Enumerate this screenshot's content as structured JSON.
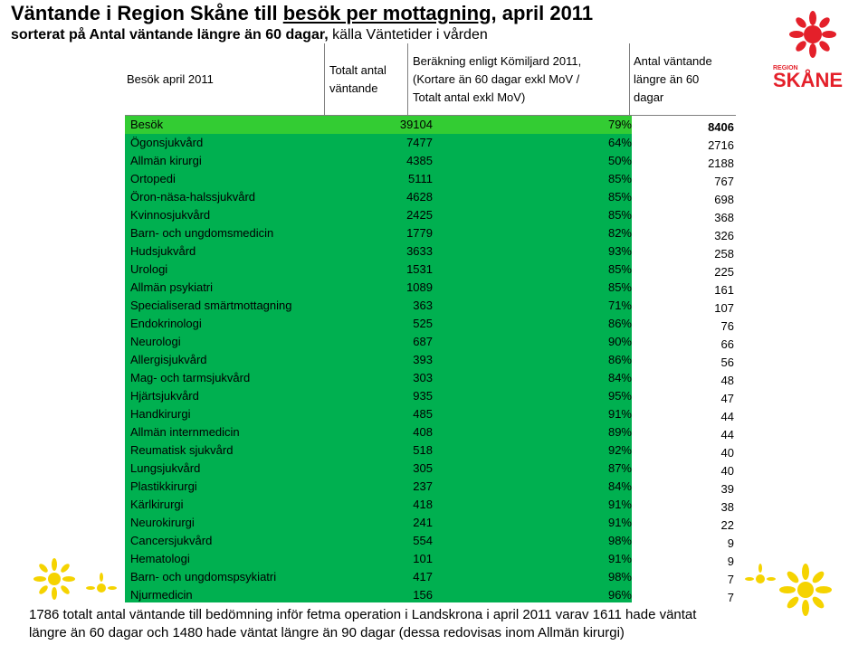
{
  "title": {
    "prefix": "Väntande i Region Skåne till ",
    "underlined": "besök per mottagning",
    "suffix": ", april 2011"
  },
  "subtitle": {
    "bold": "sorterat på Antal väntande längre än 60 dagar,",
    "normal": " källa Väntetider i vården"
  },
  "logo": {
    "text": "REGION SKÅNE",
    "color": "#e4202a",
    "icon": "griffin-logo"
  },
  "table": {
    "headers": {
      "col1": "Besök april 2011",
      "col2_line1": "Totalt antal",
      "col2_line2": "väntande",
      "col3_line1": "Beräkning enligt Kömiljard 2011,",
      "col3_line2": "(Kortare än 60 dagar exkl MoV /",
      "col3_line3": "Totalt antal exkl MoV)",
      "col4_line1": "Antal väntande",
      "col4_line2": "längre än 60",
      "col4_line3": "dagar"
    },
    "rows": [
      {
        "name": "Besök",
        "total": "39104",
        "pct": "79%",
        "over60": "8406"
      },
      {
        "name": "Ögonsjukvård",
        "total": "7477",
        "pct": "64%",
        "over60": "2716"
      },
      {
        "name": "Allmän kirurgi",
        "total": "4385",
        "pct": "50%",
        "over60": "2188"
      },
      {
        "name": "Ortopedi",
        "total": "5111",
        "pct": "85%",
        "over60": "767"
      },
      {
        "name": "Öron-näsa-halssjukvård",
        "total": "4628",
        "pct": "85%",
        "over60": "698"
      },
      {
        "name": "Kvinnosjukvård",
        "total": "2425",
        "pct": "85%",
        "over60": "368"
      },
      {
        "name": "Barn- och ungdomsmedicin",
        "total": "1779",
        "pct": "82%",
        "over60": "326"
      },
      {
        "name": "Hudsjukvård",
        "total": "3633",
        "pct": "93%",
        "over60": "258"
      },
      {
        "name": "Urologi",
        "total": "1531",
        "pct": "85%",
        "over60": "225"
      },
      {
        "name": "Allmän psykiatri",
        "total": "1089",
        "pct": "85%",
        "over60": "161"
      },
      {
        "name": "Specialiserad smärtmottagning",
        "total": "363",
        "pct": "71%",
        "over60": "107"
      },
      {
        "name": "Endokrinologi",
        "total": "525",
        "pct": "86%",
        "over60": "76"
      },
      {
        "name": "Neurologi",
        "total": "687",
        "pct": "90%",
        "over60": "66"
      },
      {
        "name": "Allergisjukvård",
        "total": "393",
        "pct": "86%",
        "over60": "56"
      },
      {
        "name": "Mag- och tarmsjukvård",
        "total": "303",
        "pct": "84%",
        "over60": "48"
      },
      {
        "name": "Hjärtsjukvård",
        "total": "935",
        "pct": "95%",
        "over60": "47"
      },
      {
        "name": "Handkirurgi",
        "total": "485",
        "pct": "91%",
        "over60": "44"
      },
      {
        "name": "Allmän internmedicin",
        "total": "408",
        "pct": "89%",
        "over60": "44"
      },
      {
        "name": "Reumatisk sjukvård",
        "total": "518",
        "pct": "92%",
        "over60": "40"
      },
      {
        "name": "Lungsjukvård",
        "total": "305",
        "pct": "87%",
        "over60": "40"
      },
      {
        "name": "Plastikkirurgi",
        "total": "237",
        "pct": "84%",
        "over60": "39"
      },
      {
        "name": "Kärlkirurgi",
        "total": "418",
        "pct": "91%",
        "over60": "38"
      },
      {
        "name": "Neurokirurgi",
        "total": "241",
        "pct": "91%",
        "over60": "22"
      },
      {
        "name": "Cancersjukvård",
        "total": "554",
        "pct": "98%",
        "over60": "9"
      },
      {
        "name": "Hematologi",
        "total": "101",
        "pct": "91%",
        "over60": "9"
      },
      {
        "name": "Barn- och ungdomspsykiatri",
        "total": "417",
        "pct": "98%",
        "over60": "7"
      },
      {
        "name": "Njurmedicin",
        "total": "156",
        "pct": "96%",
        "over60": "7"
      }
    ]
  },
  "footnote": {
    "line1": "1786 totalt antal väntande till bedömning inför fetma operation i Landskrona i april 2011 varav 1611 hade väntat",
    "line2": "längre än 60 dagar och 1480 hade väntat längre än 90 dagar (dessa redovisas inom Allmän kirurgi)"
  },
  "colors": {
    "row_green": "#00b050",
    "first_row_green": "#33cc33",
    "logo_red": "#e4202a",
    "flower_yellow": "#f5d300"
  }
}
